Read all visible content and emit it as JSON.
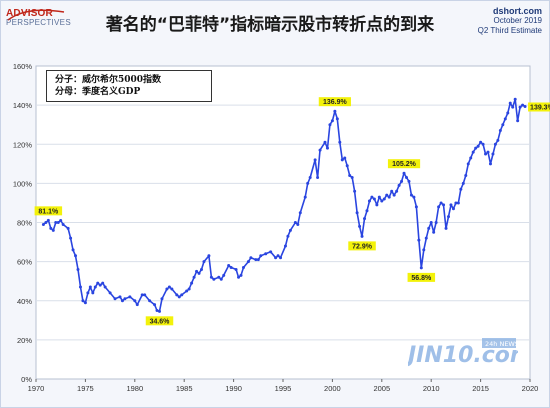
{
  "brand": {
    "logo_line1": "ADVISOR",
    "logo_line2": "PERSPECTIVES",
    "source_lines": [
      "dshort.com",
      "October 2019",
      "Q2 Third Estimate"
    ],
    "watermark": "JIN10.com",
    "watermark_badge": "24h NEWS"
  },
  "legend": {
    "line1": "分子：威尔希尔5000指数",
    "line2": "分母：季度名义GDP"
  },
  "colors": {
    "line": "#2a45e0",
    "annotation_bg": "#f3f20a",
    "grid": "#d9dfe9",
    "title": "#1a1a1a"
  },
  "chart_data": {
    "type": "line",
    "title": "著名的“巴菲特”指标暗示股市转折点的到来",
    "xlabel": "",
    "ylabel": "",
    "xlim": [
      1970,
      2020
    ],
    "ylim": [
      0,
      160
    ],
    "x_ticks": [
      1970,
      1975,
      1980,
      1985,
      1990,
      1995,
      2000,
      2005,
      2010,
      2015,
      2020
    ],
    "y_ticks": [
      0,
      20,
      40,
      60,
      80,
      100,
      120,
      140,
      160
    ],
    "y_tick_labels": [
      "0%",
      "20%",
      "40%",
      "60%",
      "80%",
      "100%",
      "120%",
      "140%",
      "160%"
    ],
    "grid": true,
    "series": [
      {
        "points": [
          [
            1970.75,
            79
          ],
          [
            1971.0,
            80
          ],
          [
            1971.25,
            81.1
          ],
          [
            1971.5,
            77
          ],
          [
            1971.75,
            76
          ],
          [
            1972.0,
            80
          ],
          [
            1972.25,
            80
          ],
          [
            1972.5,
            81
          ],
          [
            1972.75,
            79
          ],
          [
            1973.25,
            77
          ],
          [
            1973.5,
            72
          ],
          [
            1973.75,
            66
          ],
          [
            1974.0,
            63
          ],
          [
            1974.25,
            56
          ],
          [
            1974.5,
            47
          ],
          [
            1974.75,
            40
          ],
          [
            1975.0,
            39
          ],
          [
            1975.25,
            44
          ],
          [
            1975.5,
            47
          ],
          [
            1975.75,
            44
          ],
          [
            1976.0,
            47
          ],
          [
            1976.25,
            49
          ],
          [
            1976.5,
            48
          ],
          [
            1976.75,
            49
          ],
          [
            1977.0,
            47
          ],
          [
            1977.5,
            44
          ],
          [
            1978.0,
            41
          ],
          [
            1978.5,
            42
          ],
          [
            1978.75,
            40
          ],
          [
            1979.0,
            41
          ],
          [
            1979.5,
            42
          ],
          [
            1980.0,
            40
          ],
          [
            1980.25,
            38
          ],
          [
            1980.75,
            43
          ],
          [
            1981.0,
            43
          ],
          [
            1981.5,
            40
          ],
          [
            1982.0,
            38
          ],
          [
            1982.25,
            35
          ],
          [
            1982.5,
            34.6
          ],
          [
            1982.75,
            41
          ],
          [
            1983.25,
            46
          ],
          [
            1983.5,
            47
          ],
          [
            1983.75,
            46
          ],
          [
            1984.25,
            43
          ],
          [
            1984.5,
            42
          ],
          [
            1984.75,
            43
          ],
          [
            1985.25,
            45
          ],
          [
            1985.5,
            46
          ],
          [
            1985.75,
            49
          ],
          [
            1986.0,
            52
          ],
          [
            1986.25,
            55
          ],
          [
            1986.5,
            54
          ],
          [
            1986.75,
            56
          ],
          [
            1987.0,
            60
          ],
          [
            1987.5,
            63
          ],
          [
            1987.75,
            52
          ],
          [
            1988.0,
            51
          ],
          [
            1988.5,
            52
          ],
          [
            1988.75,
            51
          ],
          [
            1989.0,
            53
          ],
          [
            1989.5,
            58
          ],
          [
            1989.75,
            57
          ],
          [
            1990.25,
            56
          ],
          [
            1990.5,
            52
          ],
          [
            1990.75,
            53
          ],
          [
            1991.0,
            57
          ],
          [
            1991.5,
            60
          ],
          [
            1991.75,
            62
          ],
          [
            1992.25,
            61
          ],
          [
            1992.5,
            61
          ],
          [
            1992.75,
            63
          ],
          [
            1993.25,
            64
          ],
          [
            1993.75,
            65
          ],
          [
            1994.25,
            62
          ],
          [
            1994.5,
            63
          ],
          [
            1994.75,
            62
          ],
          [
            1995.25,
            68
          ],
          [
            1995.5,
            73
          ],
          [
            1995.75,
            76
          ],
          [
            1996.25,
            80
          ],
          [
            1996.5,
            79
          ],
          [
            1996.75,
            85
          ],
          [
            1997.25,
            93
          ],
          [
            1997.5,
            100
          ],
          [
            1997.75,
            103
          ],
          [
            1998.25,
            112
          ],
          [
            1998.5,
            103
          ],
          [
            1998.75,
            117
          ],
          [
            1999.25,
            121
          ],
          [
            1999.5,
            118
          ],
          [
            1999.75,
            130
          ],
          [
            2000.0,
            132
          ],
          [
            2000.25,
            136.9
          ],
          [
            2000.5,
            133
          ],
          [
            2000.75,
            121
          ],
          [
            2001.0,
            112
          ],
          [
            2001.25,
            113
          ],
          [
            2001.5,
            109
          ],
          [
            2001.75,
            104
          ],
          [
            2002.0,
            103
          ],
          [
            2002.25,
            96
          ],
          [
            2002.5,
            85
          ],
          [
            2002.75,
            78
          ],
          [
            2003.0,
            72.9
          ],
          [
            2003.25,
            82
          ],
          [
            2003.5,
            86
          ],
          [
            2003.75,
            91
          ],
          [
            2004.0,
            93
          ],
          [
            2004.25,
            92
          ],
          [
            2004.5,
            89
          ],
          [
            2004.75,
            93
          ],
          [
            2005.0,
            91
          ],
          [
            2005.25,
            92
          ],
          [
            2005.5,
            94
          ],
          [
            2005.75,
            93
          ],
          [
            2006.0,
            96
          ],
          [
            2006.25,
            94
          ],
          [
            2006.5,
            96
          ],
          [
            2006.75,
            99
          ],
          [
            2007.0,
            101
          ],
          [
            2007.25,
            105.2
          ],
          [
            2007.5,
            103
          ],
          [
            2007.75,
            101
          ],
          [
            2008.0,
            94
          ],
          [
            2008.25,
            93
          ],
          [
            2008.5,
            88
          ],
          [
            2008.75,
            71
          ],
          [
            2009.0,
            56.8
          ],
          [
            2009.25,
            66
          ],
          [
            2009.5,
            72
          ],
          [
            2009.75,
            77
          ],
          [
            2010.0,
            80
          ],
          [
            2010.25,
            75
          ],
          [
            2010.5,
            80
          ],
          [
            2010.75,
            88
          ],
          [
            2011.0,
            90
          ],
          [
            2011.25,
            89
          ],
          [
            2011.5,
            77
          ],
          [
            2011.75,
            83
          ],
          [
            2012.0,
            89
          ],
          [
            2012.25,
            87
          ],
          [
            2012.5,
            90
          ],
          [
            2012.75,
            90
          ],
          [
            2013.0,
            97
          ],
          [
            2013.25,
            100
          ],
          [
            2013.5,
            104
          ],
          [
            2013.75,
            110
          ],
          [
            2014.0,
            113
          ],
          [
            2014.25,
            116
          ],
          [
            2014.5,
            118
          ],
          [
            2014.75,
            119
          ],
          [
            2015.0,
            121
          ],
          [
            2015.25,
            120
          ],
          [
            2015.5,
            115
          ],
          [
            2015.75,
            116
          ],
          [
            2016.0,
            110
          ],
          [
            2016.25,
            115
          ],
          [
            2016.5,
            120
          ],
          [
            2016.75,
            122
          ],
          [
            2017.0,
            127
          ],
          [
            2017.25,
            130
          ],
          [
            2017.5,
            133
          ],
          [
            2017.75,
            136
          ],
          [
            2018.0,
            141
          ],
          [
            2018.25,
            139
          ],
          [
            2018.5,
            143
          ],
          [
            2018.75,
            132
          ],
          [
            2019.0,
            139
          ],
          [
            2019.25,
            140
          ],
          [
            2019.5,
            139.3
          ]
        ]
      }
    ],
    "annotations": [
      {
        "x": 1971.25,
        "y": 81.1,
        "label": "81.1%"
      },
      {
        "x": 1982.5,
        "y": 34.6,
        "label": "34.6%"
      },
      {
        "x": 2000.25,
        "y": 136.9,
        "label": "136.9%"
      },
      {
        "x": 2003.0,
        "y": 72.9,
        "label": "72.9%"
      },
      {
        "x": 2007.25,
        "y": 105.2,
        "label": "105.2%"
      },
      {
        "x": 2009.0,
        "y": 56.8,
        "label": "56.8%"
      },
      {
        "x": 2019.5,
        "y": 139.3,
        "label": "139.3%"
      }
    ]
  }
}
